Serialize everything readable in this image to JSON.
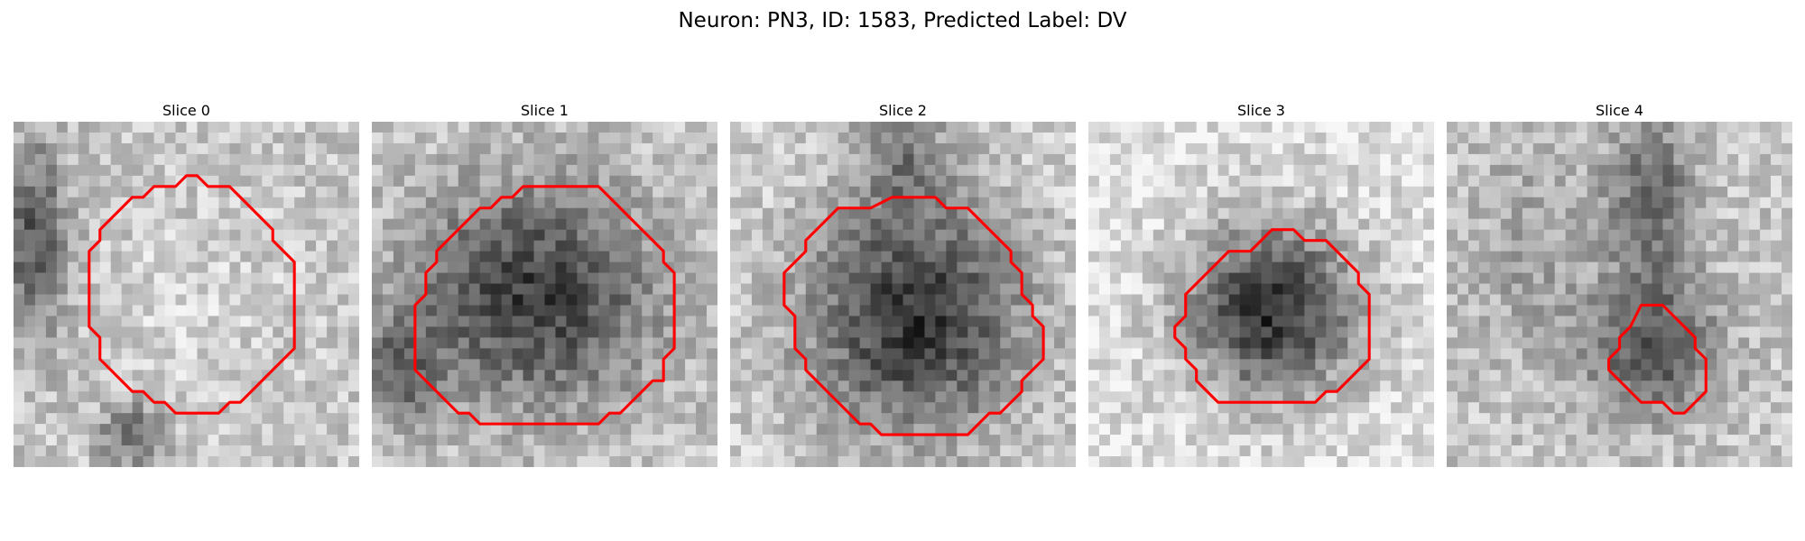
{
  "figure": {
    "title": "Neuron: PN3, ID: 1583, Predicted Label: DV",
    "colormap": "gray",
    "contour_color": "#ff0000"
  },
  "slices": [
    {
      "title": "Slice 0"
    },
    {
      "title": "Slice 1"
    },
    {
      "title": "Slice 2"
    },
    {
      "title": "Slice 3"
    },
    {
      "title": "Slice 4"
    }
  ]
}
